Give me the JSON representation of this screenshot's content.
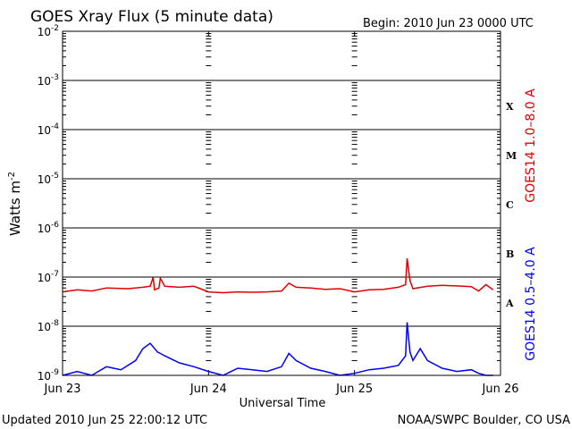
{
  "chart_data": {
    "type": "line",
    "title": "GOES Xray Flux (5 minute data)",
    "begin_label": "Begin:  2010 Jun 23 0000 UTC",
    "xlabel": "Universal Time",
    "ylabel_base": "Watts m",
    "ylabel_exp": "-2",
    "updated": "Updated 2010 Jun 25 22:00:12 UTC",
    "source": "NOAA/SWPC Boulder, CO USA",
    "x_ticks": [
      "Jun 23",
      "Jun 24",
      "Jun 25",
      "Jun 26"
    ],
    "xlim_days": [
      0,
      3
    ],
    "y_scale": "log",
    "ylim": [
      1e-09,
      0.01
    ],
    "y_ticks": [
      {
        "base": "10",
        "exp": "-2",
        "value": 0.01
      },
      {
        "base": "10",
        "exp": "-3",
        "value": 0.001
      },
      {
        "base": "10",
        "exp": "-4",
        "value": 0.0001
      },
      {
        "base": "10",
        "exp": "-5",
        "value": 1e-05
      },
      {
        "base": "10",
        "exp": "-6",
        "value": 1e-06
      },
      {
        "base": "10",
        "exp": "-7",
        "value": 1e-07
      },
      {
        "base": "10",
        "exp": "-8",
        "value": 1e-08
      },
      {
        "base": "10",
        "exp": "-9",
        "value": 1e-09
      }
    ],
    "flare_classes": [
      {
        "label": "X",
        "value": 0.0003
      },
      {
        "label": "M",
        "value": 3e-05
      },
      {
        "label": "C",
        "value": 3e-06
      },
      {
        "label": "B",
        "value": 3e-07
      },
      {
        "label": "A",
        "value": 3e-08
      }
    ],
    "series": [
      {
        "name": "GOES14 1.0–8.0 A",
        "color": "#e00000",
        "x": [
          0,
          0.1,
          0.2,
          0.3,
          0.45,
          0.55,
          0.6,
          0.62,
          0.63,
          0.66,
          0.67,
          0.7,
          0.8,
          0.9,
          1.0,
          1.1,
          1.2,
          1.3,
          1.4,
          1.5,
          1.55,
          1.6,
          1.7,
          1.8,
          1.9,
          2.0,
          2.1,
          2.2,
          2.3,
          2.35,
          2.36,
          2.38,
          2.4,
          2.5,
          2.6,
          2.7,
          2.8,
          2.85,
          2.9,
          2.95
        ],
        "y": [
          5e-08,
          5.5e-08,
          5.2e-08,
          6e-08,
          5.8e-08,
          6.2e-08,
          6.5e-08,
          9.8e-08,
          5.5e-08,
          6e-08,
          9.5e-08,
          6.5e-08,
          6.2e-08,
          6.5e-08,
          5e-08,
          4.8e-08,
          5e-08,
          4.9e-08,
          5e-08,
          5.2e-08,
          7.5e-08,
          6.2e-08,
          6e-08,
          5.6e-08,
          5.8e-08,
          5e-08,
          5.5e-08,
          5.6e-08,
          6.2e-08,
          7e-08,
          2.4e-07,
          8.5e-08,
          5.8e-08,
          6.5e-08,
          6.8e-08,
          6.6e-08,
          6.4e-08,
          5.2e-08,
          7e-08,
          5.5e-08
        ]
      },
      {
        "name": "GOES14 0.5–4.0 A",
        "color": "#0000ff",
        "x": [
          0,
          0.1,
          0.2,
          0.3,
          0.4,
          0.5,
          0.55,
          0.6,
          0.65,
          0.7,
          0.8,
          0.9,
          1.0,
          1.1,
          1.2,
          1.3,
          1.4,
          1.5,
          1.55,
          1.6,
          1.7,
          1.8,
          1.9,
          2.0,
          2.1,
          2.2,
          2.3,
          2.35,
          2.36,
          2.38,
          2.4,
          2.45,
          2.5,
          2.6,
          2.7,
          2.8,
          2.85,
          2.9,
          2.95
        ],
        "y": [
          1e-09,
          1.2e-09,
          1e-09,
          1.5e-09,
          1.3e-09,
          2e-09,
          3.5e-09,
          4.5e-09,
          3e-09,
          2.5e-09,
          1.8e-09,
          1.5e-09,
          1.2e-09,
          1e-09,
          1.4e-09,
          1.3e-09,
          1.2e-09,
          1.5e-09,
          2.8e-09,
          2e-09,
          1.4e-09,
          1.2e-09,
          1e-09,
          1.1e-09,
          1.3e-09,
          1.4e-09,
          1.6e-09,
          2.5e-09,
          1.2e-08,
          3e-09,
          2e-09,
          3.5e-09,
          2e-09,
          1.4e-09,
          1.2e-09,
          1.3e-09,
          1.1e-09,
          1e-09,
          1e-09
        ]
      }
    ]
  }
}
